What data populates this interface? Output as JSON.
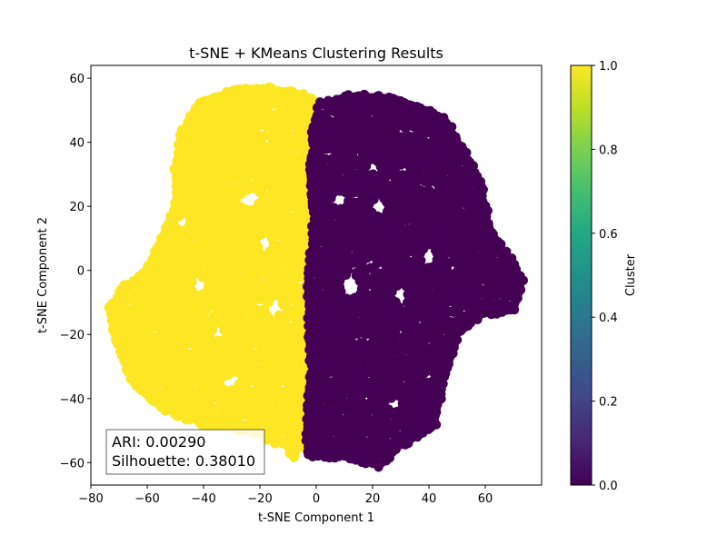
{
  "chart_data": {
    "type": "scatter",
    "title": "t-SNE + KMeans Clustering Results",
    "xlabel": "t-SNE Component 1",
    "ylabel": "t-SNE Component 2",
    "xlim": [
      -80,
      80
    ],
    "ylim": [
      -67,
      64
    ],
    "xticks": [
      "−80",
      "−60",
      "−40",
      "−20",
      "0",
      "20",
      "40",
      "60"
    ],
    "yticks": [
      "−60",
      "−40",
      "−20",
      "0",
      "20",
      "40",
      "60"
    ],
    "grid": false,
    "colormap": "viridis",
    "colorbar": {
      "label": "Cluster",
      "range": [
        0.0,
        1.0
      ],
      "ticks": [
        "0.0",
        "0.2",
        "0.4",
        "0.6",
        "0.8",
        "1.0"
      ]
    },
    "series": [
      {
        "cluster": 1.0,
        "color": "#fde725",
        "region_outline": [
          [
            -20,
            57
          ],
          [
            -8,
            56
          ],
          [
            1,
            52
          ],
          [
            -1,
            45
          ],
          [
            -2,
            30
          ],
          [
            -1,
            15
          ],
          [
            -2,
            5
          ],
          [
            -3,
            -10
          ],
          [
            -2,
            -30
          ],
          [
            -3,
            -45
          ],
          [
            -5,
            -52
          ],
          [
            -8,
            -59
          ],
          [
            -10,
            -55
          ],
          [
            -25,
            -50
          ],
          [
            -40,
            -48
          ],
          [
            -55,
            -43
          ],
          [
            -65,
            -35
          ],
          [
            -71,
            -22
          ],
          [
            -74,
            -12
          ],
          [
            -68,
            -5
          ],
          [
            -60,
            0
          ],
          [
            -55,
            10
          ],
          [
            -50,
            20
          ],
          [
            -50,
            32
          ],
          [
            -48,
            42
          ],
          [
            -42,
            52
          ],
          [
            -30,
            56
          ]
        ]
      },
      {
        "cluster": 0.0,
        "color": "#440154",
        "region_outline": [
          [
            1,
            52
          ],
          [
            15,
            55
          ],
          [
            30,
            53
          ],
          [
            45,
            48
          ],
          [
            52,
            38
          ],
          [
            58,
            28
          ],
          [
            62,
            12
          ],
          [
            70,
            2
          ],
          [
            73,
            -3
          ],
          [
            70,
            -12
          ],
          [
            58,
            -14
          ],
          [
            50,
            -20
          ],
          [
            45,
            -35
          ],
          [
            42,
            -48
          ],
          [
            30,
            -55
          ],
          [
            22,
            -61
          ],
          [
            10,
            -58
          ],
          [
            -3,
            -58
          ],
          [
            -3,
            -45
          ],
          [
            -2,
            -30
          ],
          [
            -3,
            -10
          ],
          [
            -2,
            5
          ],
          [
            -1,
            15
          ],
          [
            -2,
            30
          ],
          [
            -1,
            45
          ]
        ]
      }
    ],
    "annotations": {
      "ari": "ARI: 0.00290",
      "silhouette": "Silhouette: 0.38010"
    }
  }
}
